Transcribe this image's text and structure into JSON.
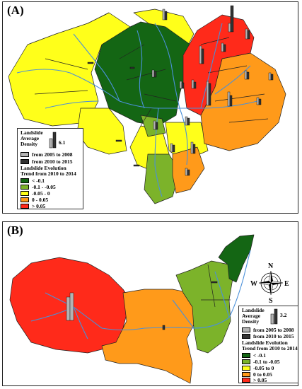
{
  "panel_a": {
    "label": "(A)",
    "legend": {
      "density_title": [
        "Landslide",
        "Average",
        "Density"
      ],
      "density_value": "6.1",
      "period_items": [
        {
          "label": "from 2005 to 2008",
          "color": "#b3b3b3"
        },
        {
          "label": "from 2010 to 2015",
          "color": "#333333"
        }
      ],
      "trend_title": [
        "Landslide Evolution",
        "Trend from 2010 to 2014"
      ],
      "trend_classes": [
        {
          "label": "< -0.1",
          "color": "#146614"
        },
        {
          "label": "-0.1 - -0.05",
          "color": "#7cb32a"
        },
        {
          "label": "-0.05 - 0",
          "color": "#ffff1a"
        },
        {
          "label": "0 - 0.05",
          "color": "#ff9a1a"
        },
        {
          "label": "> 0.05",
          "color": "#ff2a1a"
        }
      ]
    }
  },
  "panel_b": {
    "label": "(B)",
    "compass": {
      "north": "N",
      "south": "S",
      "east": "E",
      "west": "W"
    },
    "legend": {
      "density_title": [
        "Landslide",
        "Average",
        "Density"
      ],
      "density_value": "3.2",
      "period_items": [
        {
          "label": "from 2005 to 2008",
          "color": "#b3b3b3"
        },
        {
          "label": "from 2010 to 2015",
          "color": "#333333"
        }
      ],
      "trend_title": [
        "Landslide Evolution",
        "Trend from 2010 to 2014"
      ],
      "trend_classes": [
        {
          "label": "< -0.1",
          "color": "#146614"
        },
        {
          "label": "-0.1 to -0.05",
          "color": "#7cb32a"
        },
        {
          "label": "-0.05 to 0",
          "color": "#ffff1a"
        },
        {
          "label": "0 to 0.05",
          "color": "#ff9a1a"
        },
        {
          "label": "> 0.05",
          "color": "#ff2a1a"
        }
      ]
    }
  },
  "colors": {
    "dark_green": "#146614",
    "light_green": "#7cb32a",
    "yellow": "#ffff1a",
    "orange": "#ff9a1a",
    "red": "#ff2a1a",
    "river": "#4a90d9",
    "bar_2005_2008": "#b3b3b3",
    "bar_2010_2015": "#333333"
  }
}
